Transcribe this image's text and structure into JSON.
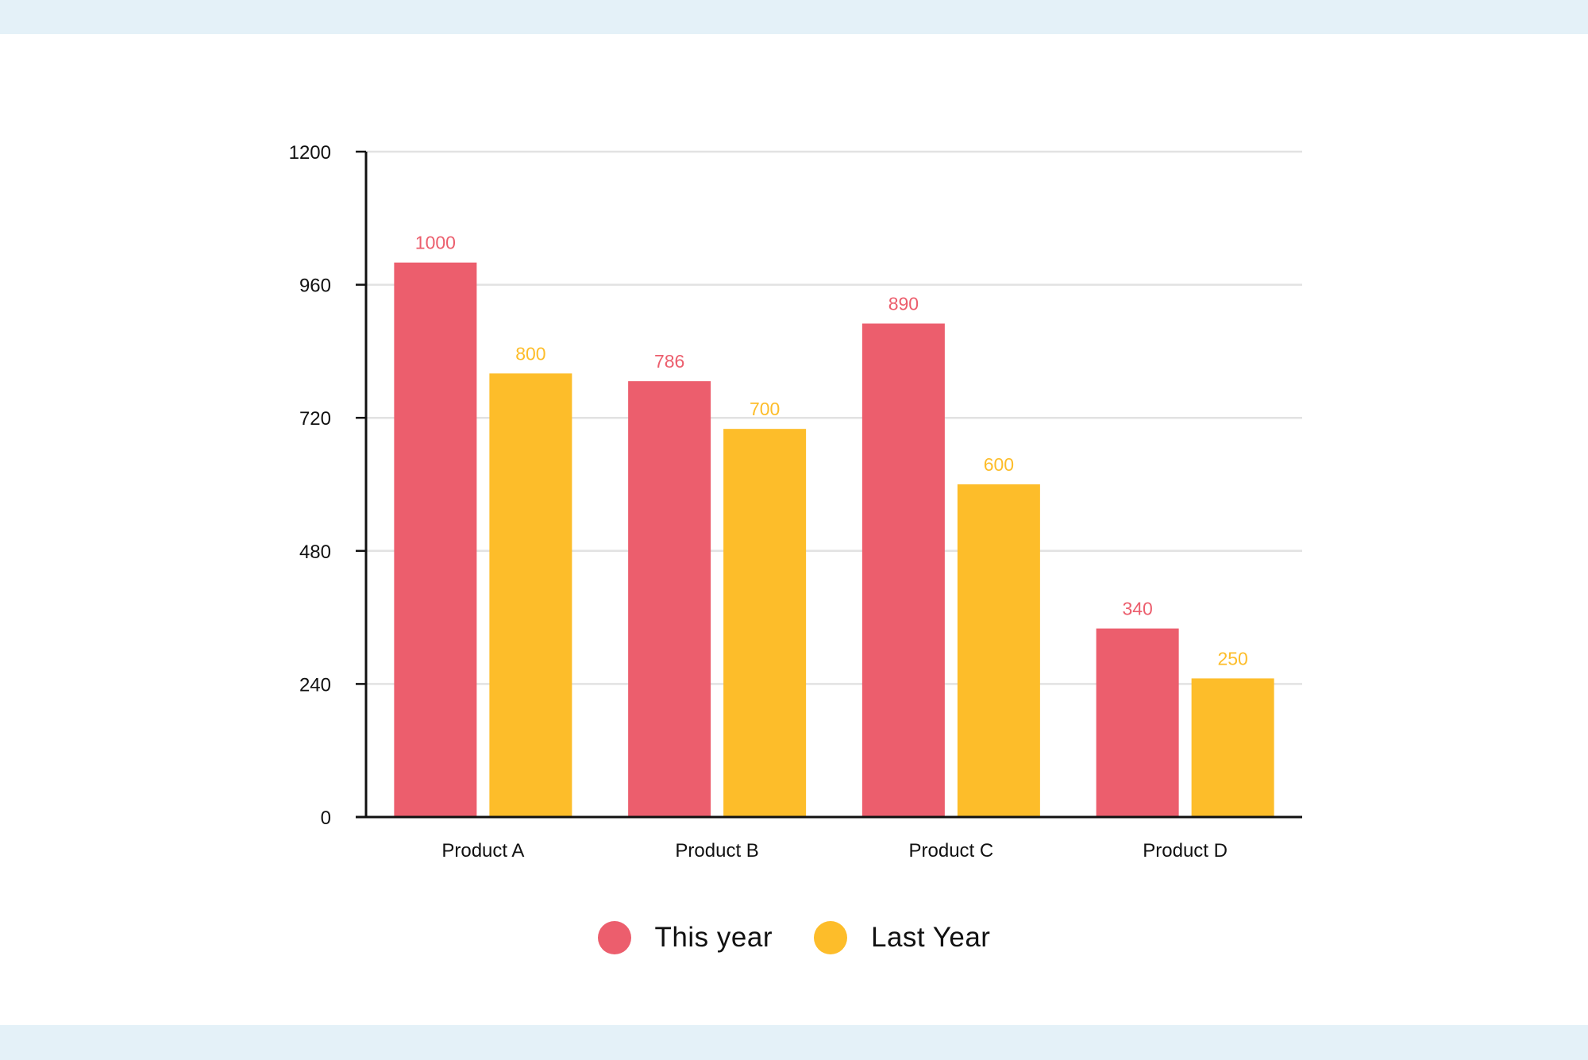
{
  "chart_data": {
    "type": "bar",
    "categories": [
      "Product A",
      "Product B",
      "Product C",
      "Product D"
    ],
    "series": [
      {
        "name": "This year",
        "values": [
          1000,
          786,
          890,
          340
        ],
        "color": "#ec5e6d"
      },
      {
        "name": "Last Year",
        "values": [
          800,
          700,
          600,
          250
        ],
        "color": "#fdbd2a"
      }
    ],
    "title": "",
    "xlabel": "",
    "ylabel": "",
    "ylim": [
      0,
      1200
    ],
    "yticks": [
      0,
      240,
      480,
      720,
      960,
      1200
    ],
    "grid": true,
    "data_labels": true,
    "legend_position": "bottom-center"
  },
  "colors": {
    "this_year": "#ec5e6d",
    "last_year": "#fdbd2a",
    "grid": "#e2e2e2",
    "axis": "#111111",
    "frame_band": "#e4f1f8"
  },
  "legend": {
    "items": [
      {
        "label": "This year",
        "color": "#ec5e6d",
        "icon": "filled-circle-icon"
      },
      {
        "label": "Last Year",
        "color": "#fdbd2a",
        "icon": "filled-circle-icon"
      }
    ]
  }
}
